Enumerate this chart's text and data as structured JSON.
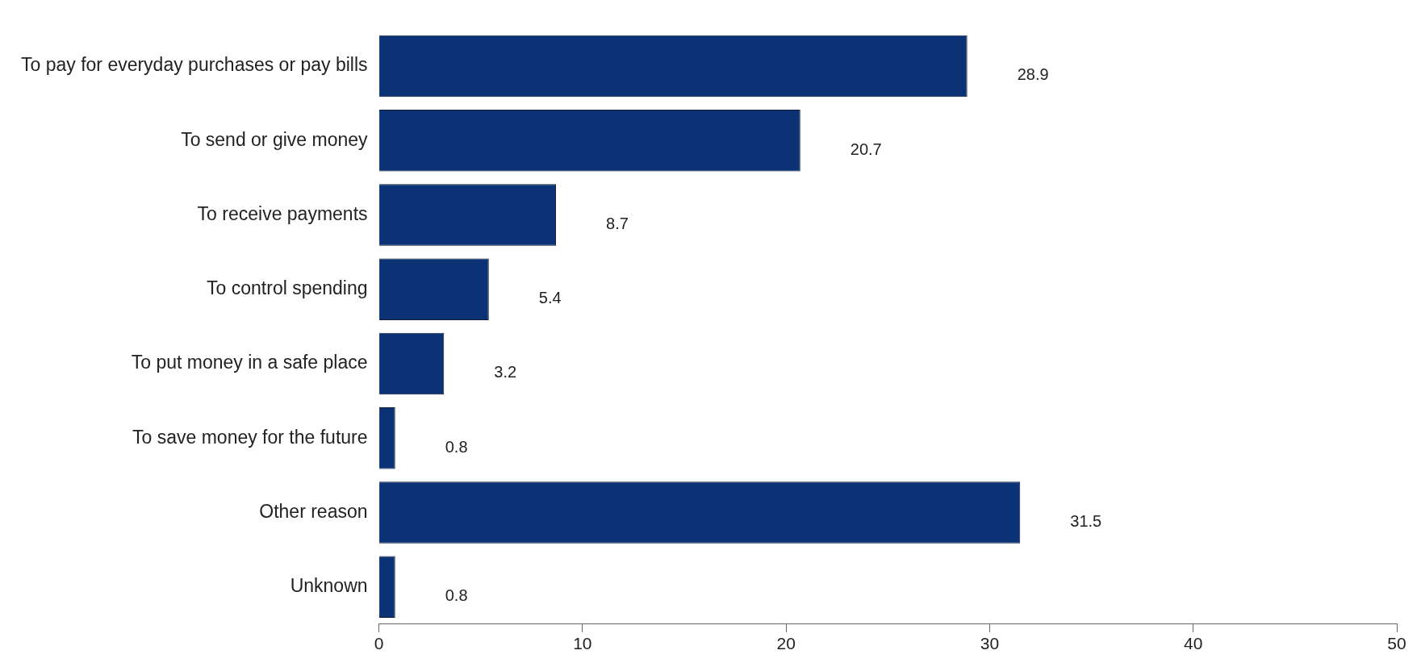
{
  "chart_data": {
    "type": "bar",
    "orientation": "horizontal",
    "categories": [
      "To pay for everyday purchases or pay bills",
      "To send or give money",
      "To receive payments",
      "To control spending",
      "To put money in a safe place",
      "To save money for the future",
      "Other reason",
      "Unknown"
    ],
    "values": [
      28.9,
      20.7,
      8.7,
      5.4,
      3.2,
      0.8,
      31.5,
      0.8
    ],
    "color": "#0a3275",
    "xlim": [
      0,
      50
    ],
    "xticks": [
      0,
      10,
      20,
      30,
      40,
      50
    ],
    "grid": false,
    "legend": false,
    "data_labels": true
  }
}
